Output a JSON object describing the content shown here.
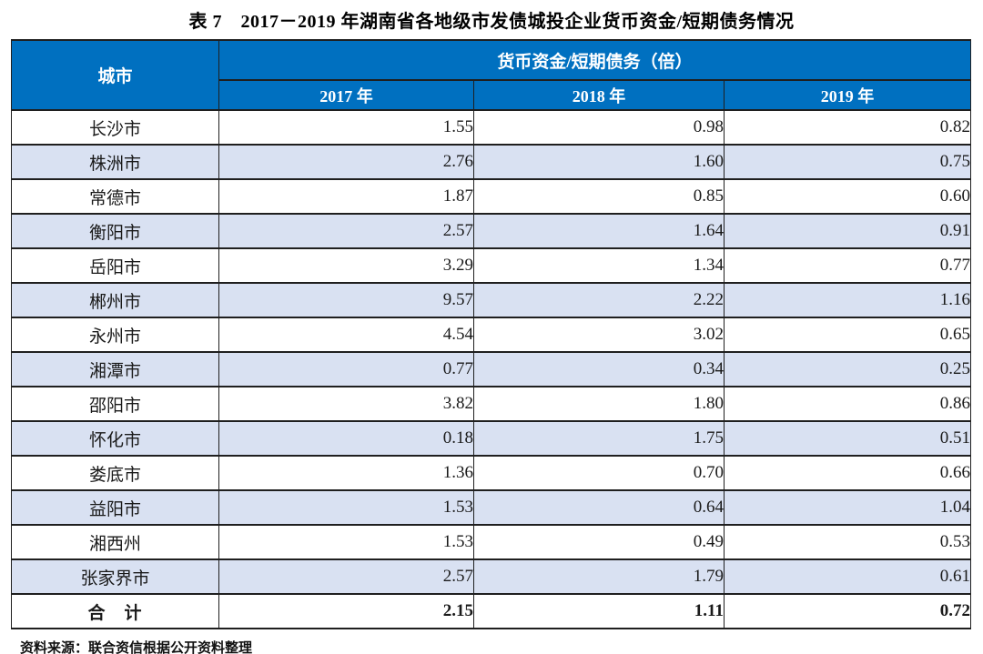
{
  "title": "表 7　2017－2019 年湖南省各地级市发债城投企业货币资金/短期债务情况",
  "table": {
    "corner_header": "城市",
    "span_header": "货币资金/短期债务（倍）",
    "year_headers": [
      "2017 年",
      "2018 年",
      "2019 年"
    ],
    "rows": [
      {
        "city": "长沙市",
        "values": [
          "1.55",
          "0.98",
          "0.82"
        ]
      },
      {
        "city": "株洲市",
        "values": [
          "2.76",
          "1.60",
          "0.75"
        ]
      },
      {
        "city": "常德市",
        "values": [
          "1.87",
          "0.85",
          "0.60"
        ]
      },
      {
        "city": "衡阳市",
        "values": [
          "2.57",
          "1.64",
          "0.91"
        ]
      },
      {
        "city": "岳阳市",
        "values": [
          "3.29",
          "1.34",
          "0.77"
        ]
      },
      {
        "city": "郴州市",
        "values": [
          "9.57",
          "2.22",
          "1.16"
        ]
      },
      {
        "city": "永州市",
        "values": [
          "4.54",
          "3.02",
          "0.65"
        ]
      },
      {
        "city": "湘潭市",
        "values": [
          "0.77",
          "0.34",
          "0.25"
        ]
      },
      {
        "city": "邵阳市",
        "values": [
          "3.82",
          "1.80",
          "0.86"
        ]
      },
      {
        "city": "怀化市",
        "values": [
          "0.18",
          "1.75",
          "0.51"
        ]
      },
      {
        "city": "娄底市",
        "values": [
          "1.36",
          "0.70",
          "0.66"
        ]
      },
      {
        "city": "益阳市",
        "values": [
          "1.53",
          "0.64",
          "1.04"
        ]
      },
      {
        "city": "湘西州",
        "values": [
          "1.53",
          "0.49",
          "0.53"
        ]
      },
      {
        "city": "张家界市",
        "values": [
          "2.57",
          "1.79",
          "0.61"
        ]
      }
    ],
    "total_row": {
      "city": "合　计",
      "values": [
        "2.15",
        "1.11",
        "0.72"
      ]
    }
  },
  "source_note": "资料来源：联合资信根据公开资料整理",
  "colors": {
    "header_bg": "#0070C0",
    "header_text": "#FFFFFF",
    "stripe_bg": "#D9E1F2",
    "border": "#1F1F1F"
  }
}
